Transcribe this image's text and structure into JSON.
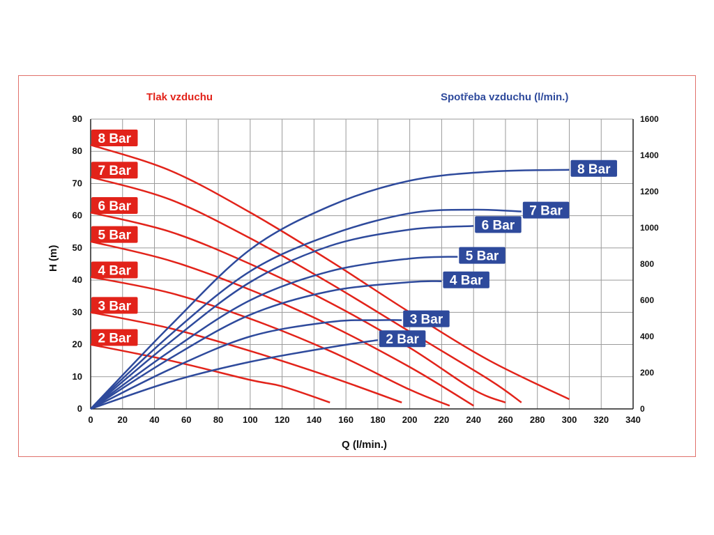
{
  "chart_data": {
    "type": "line",
    "title_left": "Tlak vzduchu",
    "title_right": "Spotřeba vzduchu (l/min.)",
    "xlabel": "Q (l/min.)",
    "ylabel_left": "H (m)",
    "xlim": [
      0,
      340
    ],
    "ylim_left": [
      0,
      90
    ],
    "ylim_right": [
      0,
      1600
    ],
    "x_ticks": [
      0,
      20,
      40,
      60,
      80,
      100,
      120,
      140,
      160,
      180,
      200,
      220,
      240,
      260,
      280,
      300,
      320,
      340
    ],
    "y_ticks_left": [
      0,
      10,
      20,
      30,
      40,
      50,
      60,
      70,
      80,
      90
    ],
    "y_ticks_right": [
      0,
      200,
      400,
      600,
      800,
      1000,
      1200,
      1400,
      1600
    ],
    "grid": true,
    "colors": {
      "head": "#e2231a",
      "air": "#2e4a9c",
      "frame": "#e0706a"
    },
    "head_series": [
      {
        "name": "8 Bar",
        "x": [
          0,
          50,
          100,
          150,
          200,
          250,
          300
        ],
        "y": [
          82,
          74,
          61,
          46,
          30,
          15,
          3
        ]
      },
      {
        "name": "7 Bar",
        "x": [
          0,
          50,
          100,
          150,
          200,
          250,
          270
        ],
        "y": [
          72,
          65,
          53,
          39,
          24,
          9,
          2
        ]
      },
      {
        "name": "6 Bar",
        "x": [
          0,
          50,
          100,
          150,
          200,
          240,
          260
        ],
        "y": [
          61,
          55,
          45,
          33,
          19,
          6,
          2
        ]
      },
      {
        "name": "5 Bar",
        "x": [
          0,
          50,
          100,
          150,
          200,
          240
        ],
        "y": [
          52,
          46,
          37,
          26,
          13,
          1
        ]
      },
      {
        "name": "4 Bar",
        "x": [
          0,
          50,
          100,
          150,
          200,
          225
        ],
        "y": [
          41,
          36,
          28,
          18,
          6,
          1
        ]
      },
      {
        "name": "3 Bar",
        "x": [
          0,
          50,
          100,
          150,
          195
        ],
        "y": [
          30,
          25,
          18,
          10,
          2
        ]
      },
      {
        "name": "2 Bar",
        "x": [
          0,
          50,
          100,
          120,
          150
        ],
        "y": [
          20,
          15,
          9,
          7,
          2
        ]
      }
    ],
    "air_series": [
      {
        "name": "8 Bar",
        "x": [
          0,
          50,
          100,
          150,
          200,
          250,
          300
        ],
        "y": [
          0,
          460,
          880,
          1120,
          1260,
          1310,
          1320
        ]
      },
      {
        "name": "7 Bar",
        "x": [
          0,
          50,
          100,
          150,
          200,
          240,
          270
        ],
        "y": [
          0,
          410,
          760,
          960,
          1080,
          1100,
          1090
        ]
      },
      {
        "name": "6 Bar",
        "x": [
          0,
          50,
          100,
          150,
          200,
          240
        ],
        "y": [
          0,
          370,
          700,
          900,
          990,
          1010
        ]
      },
      {
        "name": "5 Bar",
        "x": [
          0,
          50,
          100,
          150,
          200,
          230
        ],
        "y": [
          0,
          320,
          600,
          760,
          830,
          840
        ]
      },
      {
        "name": "4 Bar",
        "x": [
          0,
          50,
          100,
          150,
          200,
          220
        ],
        "y": [
          0,
          280,
          520,
          650,
          700,
          705
        ]
      },
      {
        "name": "3 Bar",
        "x": [
          0,
          50,
          100,
          150,
          180,
          195
        ],
        "y": [
          0,
          220,
          400,
          480,
          490,
          490
        ]
      },
      {
        "name": "2 Bar",
        "x": [
          0,
          50,
          100,
          150,
          180
        ],
        "y": [
          0,
          150,
          260,
          340,
          380
        ]
      }
    ]
  }
}
